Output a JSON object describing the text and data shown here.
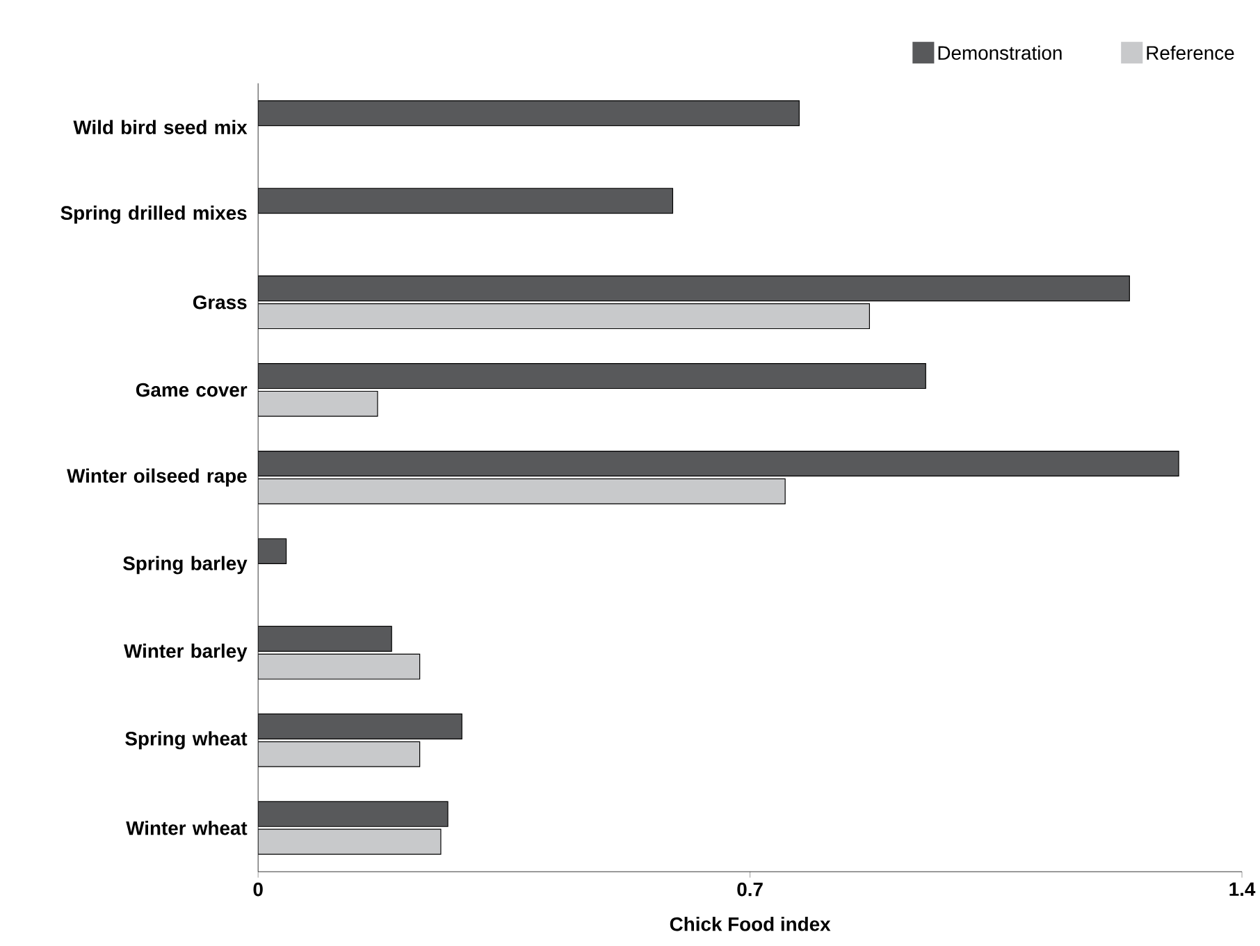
{
  "chart_data": {
    "type": "bar",
    "orientation": "horizontal",
    "xlabel": "Chick Food index",
    "categories": [
      "Wild bird seed mix",
      "Spring drilled mixes",
      "Grass",
      "Game cover",
      "Winter oilseed rape",
      "Spring barley",
      "Winter barley",
      "Spring wheat",
      "Winter wheat"
    ],
    "series": [
      {
        "name": "Demonstration",
        "color": "#58595b",
        "values": [
          0.77,
          0.59,
          1.24,
          0.95,
          1.31,
          0.04,
          0.19,
          0.29,
          0.27
        ]
      },
      {
        "name": "Reference",
        "color": "#c8c9cb",
        "values": [
          null,
          null,
          0.87,
          0.17,
          0.75,
          null,
          0.23,
          0.23,
          0.26
        ]
      }
    ],
    "xlim": [
      0,
      1.4
    ],
    "xticks": [
      0,
      0.7,
      1.4
    ],
    "legend": "top right"
  }
}
